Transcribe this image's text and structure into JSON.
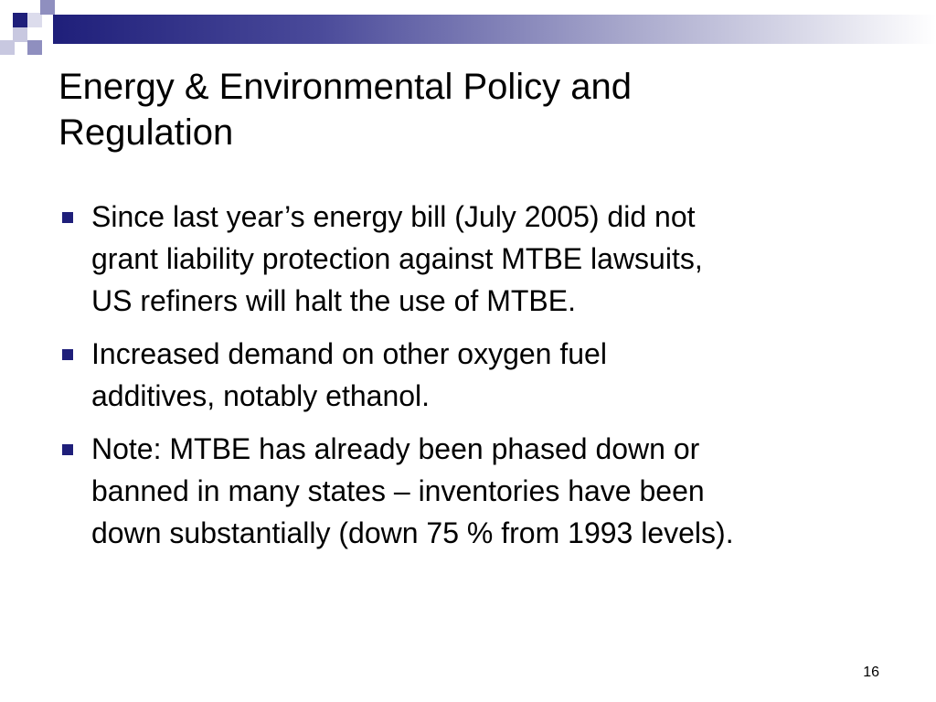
{
  "slide": {
    "title_lines": [
      "Energy & Environmental Policy and",
      "Regulation"
    ],
    "bullets": [
      {
        "lines": [
          "Since last year’s energy bill (July 2005) did not",
          "grant liability protection against MTBE lawsuits,",
          "US refiners will halt the use of MTBE."
        ]
      },
      {
        "lines": [
          "Increased demand on other oxygen fuel",
          "additives, notably ethanol."
        ]
      },
      {
        "lines": [
          "Note: MTBE has already been phased down or",
          "banned in many states – inventories have been",
          "down substantially (down 75 % from 1993 levels)."
        ]
      }
    ],
    "page_number": "16"
  },
  "colors": {
    "accent": "#1f1f7a",
    "text": "#000000",
    "background": "#ffffff"
  },
  "icons": {
    "bullet": "square-bullet-icon"
  }
}
